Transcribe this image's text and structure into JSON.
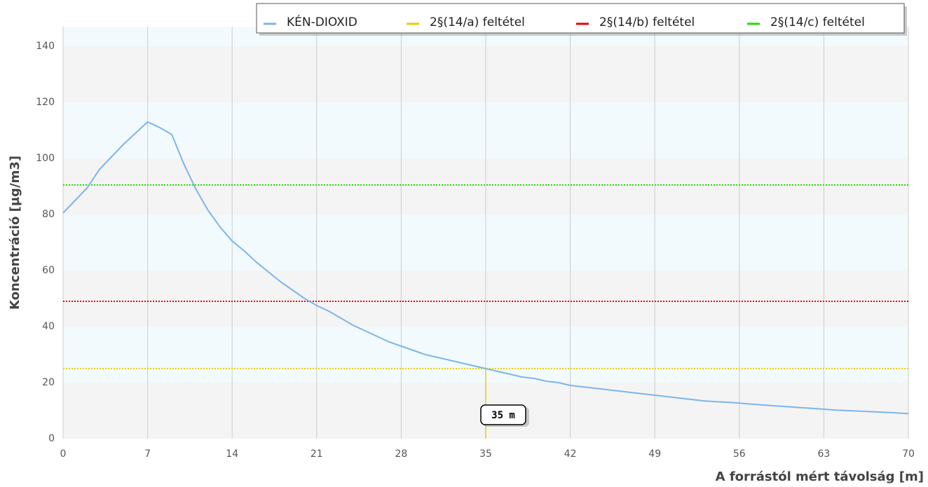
{
  "chart_data": {
    "type": "line",
    "y_label": "Koncentráció [µg/m3]",
    "x_label": "A forrástól mért távolság [m]",
    "xlim": [
      0,
      70
    ],
    "xticks": [
      0,
      7,
      14,
      21,
      28,
      35,
      42,
      49,
      56,
      63,
      70
    ],
    "ylim": [
      0,
      147
    ],
    "yticks": [
      0,
      20,
      40,
      60,
      80,
      100,
      120,
      140
    ],
    "grid": true,
    "legend": "top-right",
    "series": [
      {
        "name": "KÉN-DIOXID",
        "color": "#7cb5ec",
        "x": [
          0,
          1,
          2,
          3,
          4,
          5,
          6,
          7,
          8,
          9,
          10,
          11,
          12,
          13,
          14,
          15,
          16,
          17,
          18,
          19,
          20,
          21,
          22,
          23,
          24,
          25,
          26,
          27,
          28,
          29,
          30,
          31,
          32,
          33,
          34,
          35,
          36,
          37,
          38,
          39,
          40,
          41,
          42,
          43,
          44,
          45,
          46,
          47,
          48,
          49,
          50,
          51,
          52,
          53,
          54,
          55,
          56,
          57,
          58,
          59,
          60,
          61,
          62,
          63,
          64,
          65,
          66,
          67,
          68,
          69,
          70
        ],
        "values": [
          80.5,
          85,
          89.5,
          96,
          100.5,
          105,
          109,
          113,
          111,
          108.5,
          98,
          89,
          81.5,
          75.5,
          70.5,
          67,
          63,
          59.5,
          56,
          53,
          50,
          47.5,
          45.5,
          43,
          40.5,
          38.5,
          36.5,
          34.5,
          33,
          31.5,
          30,
          29,
          28,
          27,
          26,
          25,
          24,
          23,
          22,
          21.5,
          20.5,
          20,
          19,
          18.5,
          18,
          17.5,
          17,
          16.5,
          16,
          15.5,
          15,
          14.5,
          14,
          13.5,
          13.2,
          13,
          12.7,
          12.3,
          12,
          11.7,
          11.4,
          11.1,
          10.8,
          10.5,
          10.2,
          10,
          9.8,
          9.6,
          9.4,
          9.2,
          8.9
        ]
      }
    ],
    "thresholds": [
      {
        "name": "2§(14/a) feltétel",
        "color": "#e6cf00",
        "value": 25
      },
      {
        "name": "2§(14/b) feltétel",
        "color": "#ee0000",
        "value": 49
      },
      {
        "name": "2§(14/c) feltétel",
        "color": "#22dd00",
        "value": 90.5
      }
    ],
    "annotation": {
      "x": 35,
      "label": "35 m"
    }
  }
}
